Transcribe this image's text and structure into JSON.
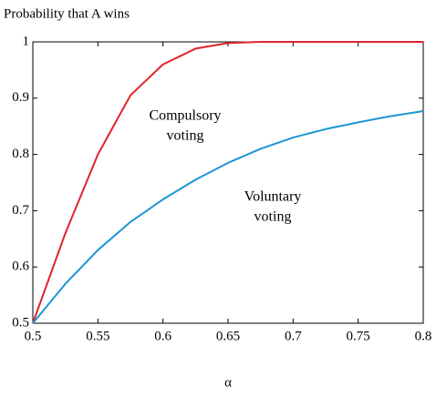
{
  "chart_data": {
    "type": "line",
    "title": "Probability that A wins",
    "xlabel": "α",
    "x": [
      0.5,
      0.525,
      0.55,
      0.575,
      0.6,
      0.625,
      0.65,
      0.675,
      0.7,
      0.725,
      0.75,
      0.775,
      0.8
    ],
    "series": [
      {
        "name": "Compulsory voting",
        "color": "#e0242c",
        "values": [
          0.5,
          0.66,
          0.8,
          0.905,
          0.96,
          0.988,
          0.998,
          1,
          1,
          1,
          1,
          1,
          1
        ]
      },
      {
        "name": "Voluntary voting",
        "color": "#1a96d4",
        "values": [
          0.5,
          0.57,
          0.63,
          0.68,
          0.72,
          0.755,
          0.785,
          0.81,
          0.83,
          0.845,
          0.857,
          0.868,
          0.877
        ]
      }
    ],
    "annotations": [
      [
        "Compulsory",
        "voting"
      ],
      [
        "Voluntary",
        "voting"
      ]
    ],
    "xlim": [
      0.5,
      0.8
    ],
    "xticks": [
      0.5,
      0.55,
      0.6,
      0.65,
      0.7,
      0.75,
      0.8
    ],
    "ylim": [
      0.5,
      1
    ],
    "yticks": [
      0.5,
      0.6,
      0.7,
      0.8,
      0.9,
      1
    ],
    "grid": false
  }
}
